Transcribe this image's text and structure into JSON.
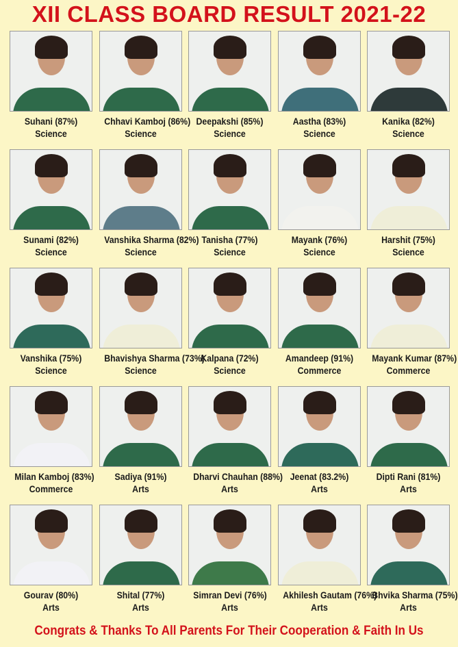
{
  "title": "XII CLASS BOARD RESULT 2021-22",
  "students": [
    {
      "name": "Suhani (87%)",
      "stream": "Science",
      "uniform": "#2e6a4a"
    },
    {
      "name": "Chhavi Kamboj (86%)",
      "stream": "Science",
      "uniform": "#2e6a4a"
    },
    {
      "name": "Deepakshi (85%)",
      "stream": "Science",
      "uniform": "#2e6a4a"
    },
    {
      "name": "Aastha (83%)",
      "stream": "Science",
      "uniform": "#3f6f7a"
    },
    {
      "name": "Kanika (82%)",
      "stream": "Science",
      "uniform": "#2e3a3a"
    },
    {
      "name": "Sunami (82%)",
      "stream": "Science",
      "uniform": "#2e6a4a"
    },
    {
      "name": "Vanshika Sharma (82%)",
      "stream": "Science",
      "uniform": "#5e7d8a"
    },
    {
      "name": "Tanisha (77%)",
      "stream": "Science",
      "uniform": "#2e6a4a"
    },
    {
      "name": "Mayank (76%)",
      "stream": "Science",
      "uniform": "#f2f2ee"
    },
    {
      "name": "Harshit (75%)",
      "stream": "Science",
      "uniform": "#efeed8"
    },
    {
      "name": "Vanshika (75%)",
      "stream": "Science",
      "uniform": "#2e6a5a"
    },
    {
      "name": "Bhavishya Sharma (73%)",
      "stream": "Science",
      "uniform": "#efeed8"
    },
    {
      "name": "Kalpana (72%)",
      "stream": "Science",
      "uniform": "#2e6a4a"
    },
    {
      "name": "Amandeep (91%)",
      "stream": "Commerce",
      "uniform": "#2e6a4a"
    },
    {
      "name": "Mayank Kumar (87%)",
      "stream": "Commerce",
      "uniform": "#efeed8"
    },
    {
      "name": "Milan Kamboj (83%)",
      "stream": "Commerce",
      "uniform": "#f2f2f6"
    },
    {
      "name": "Sadiya (91%)",
      "stream": "Arts",
      "uniform": "#2e6a4a"
    },
    {
      "name": "Dharvi Chauhan (88%)",
      "stream": "Arts",
      "uniform": "#2e6a4a"
    },
    {
      "name": "Jeenat (83.2%)",
      "stream": "Arts",
      "uniform": "#2e6a5a"
    },
    {
      "name": "Dipti Rani (81%)",
      "stream": "Arts",
      "uniform": "#2e6a4a"
    },
    {
      "name": "Gourav (80%)",
      "stream": "Arts",
      "uniform": "#f2f2f6"
    },
    {
      "name": "Shital (77%)",
      "stream": "Arts",
      "uniform": "#2e6a4a"
    },
    {
      "name": "Simran Devi (76%)",
      "stream": "Arts",
      "uniform": "#3e7a4a"
    },
    {
      "name": "Akhilesh Gautam (76%)",
      "stream": "Arts",
      "uniform": "#efeed8"
    },
    {
      "name": "Bhvika Sharma (75%)",
      "stream": "Arts",
      "uniform": "#2e6a5a"
    }
  ],
  "footer": "Congrats & Thanks To All Parents For Their Cooperation & Faith In Us",
  "colors": {
    "title": "#d3121b",
    "background": "#fcf6c6"
  }
}
